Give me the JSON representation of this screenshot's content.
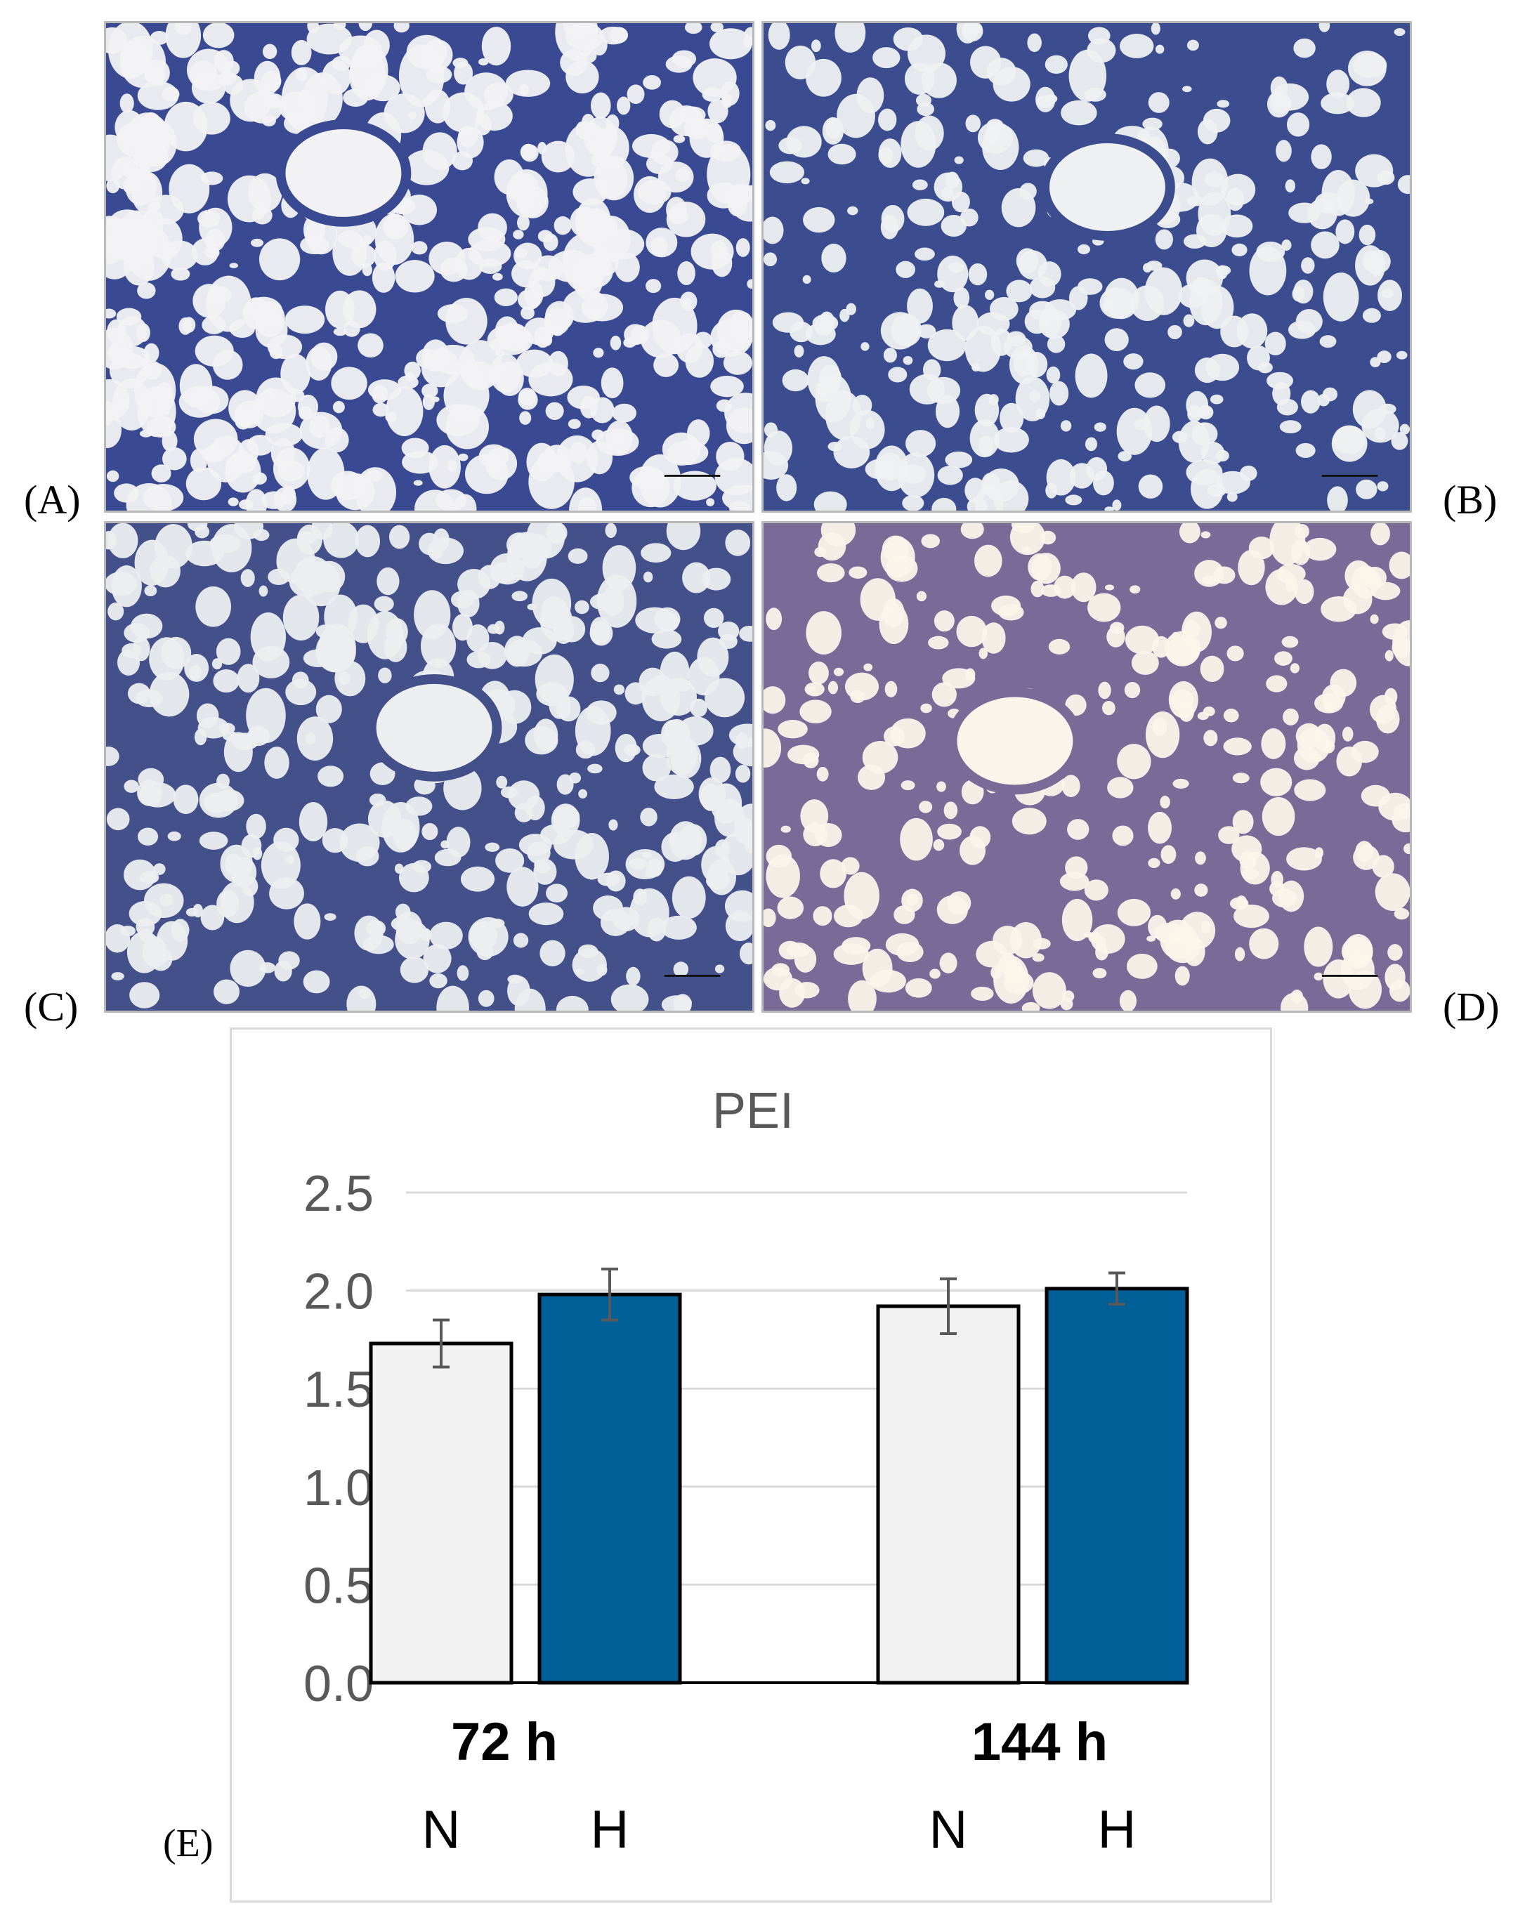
{
  "figure": {
    "panel_labels": {
      "a": "(A)",
      "b": "(B)",
      "c": "(C)",
      "d": "(D)",
      "e": "(E)"
    },
    "micrographs": [
      {
        "panel": "A",
        "stain_color": "#3a4a92",
        "background": "#f2f2f4",
        "density": 0.35
      },
      {
        "panel": "B",
        "stain_color": "#3c4d8f",
        "background": "#eef0f2",
        "density": 0.62
      },
      {
        "panel": "C",
        "stain_color": "#44508a",
        "background": "#eceef0",
        "density": 0.55
      },
      {
        "panel": "D",
        "stain_color": "#7a6a98",
        "background": "#fbf4ea",
        "density": 0.7
      }
    ]
  },
  "chart_data": {
    "type": "bar",
    "title": "PEI",
    "groups": [
      "72 h",
      "144 h"
    ],
    "category_labels": [
      "N",
      "H",
      "N",
      "H"
    ],
    "series": [
      {
        "values": [
          1.73,
          1.92
        ],
        "errors": [
          0.12,
          0.14
        ],
        "color": "#f2f2f2"
      },
      {
        "values": [
          1.98,
          2.01
        ],
        "errors": [
          0.13,
          0.08
        ],
        "color": "#005f96"
      }
    ],
    "ylim": [
      0,
      2.5
    ],
    "yticks": [
      "0.0",
      "0.5",
      "1.0",
      "1.5",
      "2.0",
      "2.5"
    ],
    "grid": true,
    "legend": "none"
  }
}
